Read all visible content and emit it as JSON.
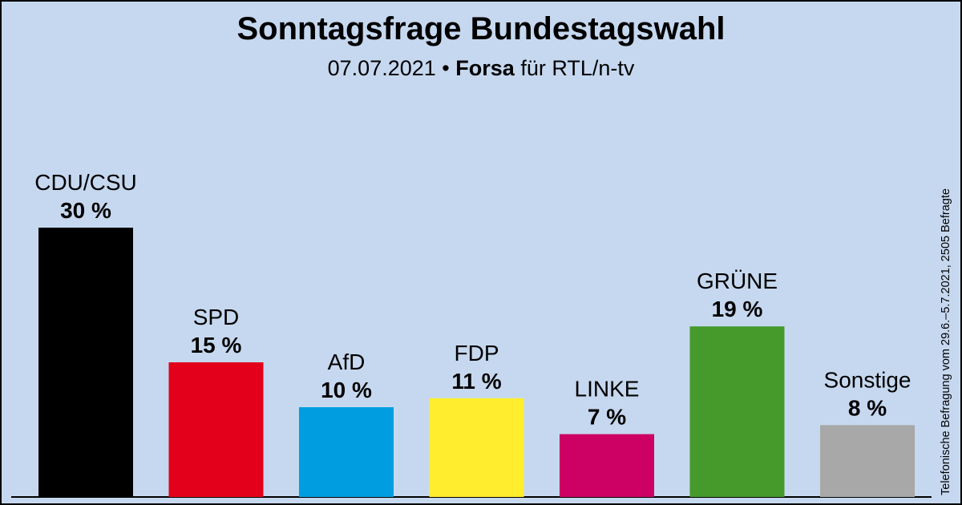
{
  "chart_data": {
    "type": "bar",
    "title": "Sonntagsfrage Bundestagswahl",
    "subtitle": {
      "date": "07.07.2021",
      "separator": "•",
      "institute": "Forsa",
      "client": "für RTL/n-tv"
    },
    "note": "Telefonische Befragung vom 29.6.–5.7.2021, 2505 Befragte",
    "unit": "%",
    "categories": [
      "CDU/CSU",
      "SPD",
      "AfD",
      "FDP",
      "LINKE",
      "GRÜNE",
      "Sonstige"
    ],
    "values": [
      30,
      15,
      10,
      11,
      7,
      19,
      8
    ],
    "colors": [
      "#000000",
      "#e3001b",
      "#009ee0",
      "#ffed2e",
      "#cd0063",
      "#459a2b",
      "#a8a8a8"
    ],
    "ylim": [
      0,
      32
    ],
    "grid": false,
    "legend": "none"
  }
}
